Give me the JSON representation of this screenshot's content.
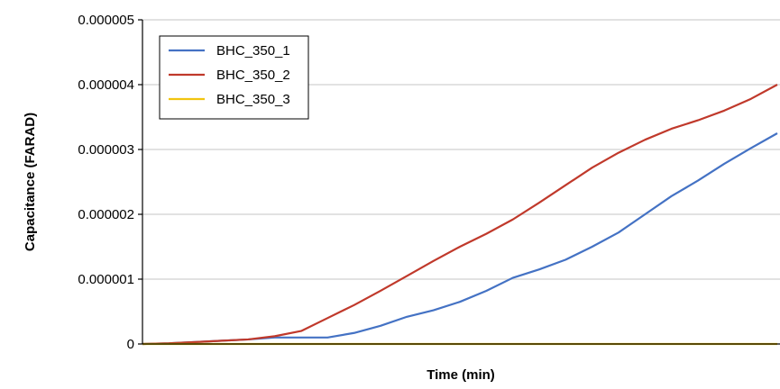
{
  "chart_data": {
    "type": "line",
    "title": "",
    "xlabel": "Time (min)",
    "ylabel": "Capacitance (FARAD)",
    "ylim": [
      0,
      5e-06
    ],
    "yticks": [
      0,
      1e-06,
      2e-06,
      3e-06,
      4e-06,
      5e-06
    ],
    "ytick_labels": [
      "0",
      "0.000001",
      "0.000002",
      "0.000003",
      "0.000004",
      "0.000005"
    ],
    "grid": true,
    "legend_position": "top-left",
    "x": [
      0,
      1,
      2,
      3,
      4,
      5,
      6,
      7,
      8,
      9,
      10,
      11,
      12,
      13,
      14,
      15,
      16,
      17,
      18,
      19,
      20,
      21,
      22,
      23,
      24
    ],
    "series": [
      {
        "name": "BHC_350_1",
        "color": "#4472c4",
        "values": [
          0,
          1e-08,
          3e-08,
          5e-08,
          7e-08,
          1e-07,
          1e-07,
          1e-07,
          1.7e-07,
          2.8e-07,
          4.2e-07,
          5.2e-07,
          6.5e-07,
          8.2e-07,
          1.02e-06,
          1.15e-06,
          1.3e-06,
          1.5e-06,
          1.72e-06,
          2e-06,
          2.28e-06,
          2.52e-06,
          2.78e-06,
          3.02e-06,
          3.25e-06
        ]
      },
      {
        "name": "BHC_350_2",
        "color": "#c0392b",
        "values": [
          0,
          1e-08,
          3e-08,
          5e-08,
          7e-08,
          1.2e-07,
          2e-07,
          4e-07,
          6e-07,
          8.2e-07,
          1.05e-06,
          1.28e-06,
          1.5e-06,
          1.7e-06,
          1.92e-06,
          2.18e-06,
          2.45e-06,
          2.72e-06,
          2.95e-06,
          3.15e-06,
          3.32e-06,
          3.45e-06,
          3.6e-06,
          3.78e-06,
          4e-06
        ]
      },
      {
        "name": "BHC_350_3",
        "color": "#f1c40f",
        "values": [
          0,
          0,
          0,
          0,
          0,
          0,
          0,
          0,
          0,
          0,
          0,
          0,
          0,
          0,
          0,
          0,
          0,
          0,
          0,
          0,
          0,
          0,
          0,
          0,
          0
        ]
      }
    ]
  }
}
